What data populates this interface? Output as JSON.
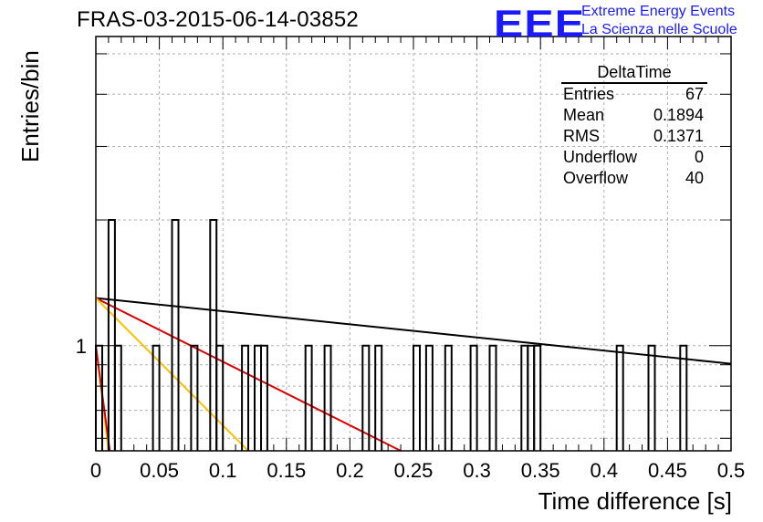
{
  "header": {
    "title": "FRAS-03-2015-06-14-03852",
    "logo_text": "EEE",
    "logo_line1": "Extreme Energy Events",
    "logo_line2": "La Scienza nelle Scuole"
  },
  "stats_box": {
    "title": "DeltaTime",
    "rows": [
      {
        "label": "Entries",
        "value": "67"
      },
      {
        "label": "Mean",
        "value": "0.1894"
      },
      {
        "label": "RMS",
        "value": "0.1371"
      },
      {
        "label": "Underflow",
        "value": "0"
      },
      {
        "label": "Overflow",
        "value": "40"
      }
    ]
  },
  "colors": {
    "histogram": "#000000",
    "fit_black": "#000000",
    "fit_red": "#dd0000",
    "fit_orange": "#ffc000",
    "grid": "#b0b0b0"
  },
  "chart_data": {
    "type": "histogram",
    "title": "FRAS-03-2015-06-14-03852",
    "xlabel": "Time difference [s]",
    "ylabel": "Entries/bin",
    "xlim": [
      0,
      0.5
    ],
    "ylim": [
      0.56,
      5.5
    ],
    "log_y": true,
    "grid": true,
    "bin_width": 0.005,
    "x_ticks": [
      "0",
      "0.05",
      "0.1",
      "0.15",
      "0.2",
      "0.25",
      "0.3",
      "0.35",
      "0.4",
      "0.45",
      "0.5"
    ],
    "y_tick_labels": [
      {
        "value": 1,
        "label": "1"
      }
    ],
    "bins": [
      {
        "x": 0.0,
        "count": 1
      },
      {
        "x": 0.01,
        "count": 2
      },
      {
        "x": 0.015,
        "count": 1
      },
      {
        "x": 0.045,
        "count": 1
      },
      {
        "x": 0.06,
        "count": 2
      },
      {
        "x": 0.075,
        "count": 1
      },
      {
        "x": 0.09,
        "count": 2
      },
      {
        "x": 0.095,
        "count": 1
      },
      {
        "x": 0.115,
        "count": 1
      },
      {
        "x": 0.125,
        "count": 1
      },
      {
        "x": 0.13,
        "count": 1
      },
      {
        "x": 0.165,
        "count": 1
      },
      {
        "x": 0.18,
        "count": 1
      },
      {
        "x": 0.21,
        "count": 1
      },
      {
        "x": 0.22,
        "count": 1
      },
      {
        "x": 0.25,
        "count": 1
      },
      {
        "x": 0.26,
        "count": 1
      },
      {
        "x": 0.275,
        "count": 1
      },
      {
        "x": 0.295,
        "count": 1
      },
      {
        "x": 0.31,
        "count": 1
      },
      {
        "x": 0.335,
        "count": 1
      },
      {
        "x": 0.34,
        "count": 1
      },
      {
        "x": 0.345,
        "count": 1
      },
      {
        "x": 0.41,
        "count": 1
      },
      {
        "x": 0.435,
        "count": 1
      },
      {
        "x": 0.46,
        "count": 1
      }
    ],
    "fits": [
      {
        "color": "#000000",
        "points": [
          [
            0.0,
            1.3
          ],
          [
            0.5,
            0.905
          ]
        ]
      },
      {
        "color": "#dd0000",
        "points": [
          [
            0.0,
            1.3
          ],
          [
            0.24,
            0.56
          ]
        ]
      },
      {
        "color": "#ffc000",
        "points": [
          [
            0.0,
            1.3
          ],
          [
            0.12,
            0.56
          ]
        ]
      },
      {
        "color": "#ffc000",
        "points": [
          [
            0.0,
            1.0
          ],
          [
            0.01,
            0.56
          ]
        ]
      },
      {
        "color": "#dd0000",
        "points": [
          [
            0.0,
            1.0
          ],
          [
            0.011,
            0.56
          ]
        ]
      }
    ]
  }
}
